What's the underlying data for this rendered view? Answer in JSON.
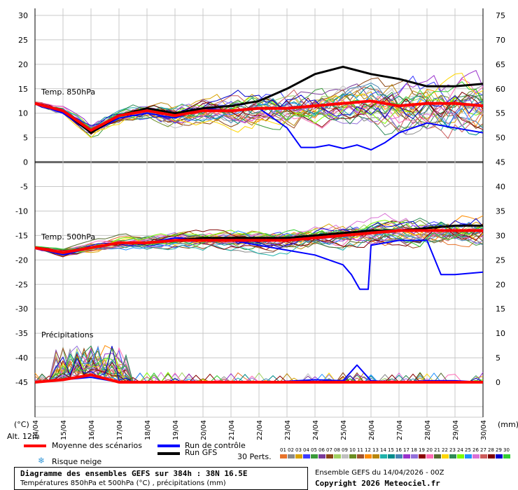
{
  "chart_data": {
    "type": "line",
    "title": "Diagramme des ensembles GEFS sur 384h : 38N 16.5E",
    "subtitle": "Températures 850hPa et 500hPa (°C) , précipitations (mm)",
    "run_info": "Ensemble GEFS du 14/04/2026 - 00Z",
    "copyright": "Copyright 2026 Meteociel.fr",
    "left_axis_unit": "(°C)",
    "right_axis_unit": "(mm)",
    "altitude": "Alt. 12m",
    "left_ticks": [
      "30",
      "25",
      "20",
      "15",
      "10",
      "5",
      "0",
      "-5",
      "-10",
      "-15",
      "-20",
      "-25",
      "-30",
      "-35",
      "-40",
      "-45"
    ],
    "right_ticks": [
      "75",
      "70",
      "65",
      "60",
      "55",
      "50",
      "45",
      "40",
      "35",
      "30",
      "25",
      "20",
      "15",
      "10",
      "5",
      "0"
    ],
    "x_dates": [
      "14/04",
      "15/04",
      "16/04",
      "17/04",
      "18/04",
      "19/04",
      "20/04",
      "21/04",
      "22/04",
      "23/04",
      "24/04",
      "25/04",
      "26/04",
      "27/04",
      "28/04",
      "29/04",
      "30/04"
    ],
    "panel_labels": {
      "t850": "Temp. 850hPa",
      "t500": "Temp. 500hPa",
      "precip": "Précipitations"
    },
    "legend": {
      "mean": "Moyenne des scénarios",
      "control": "Run de contrôle",
      "gfs": "Run GFS",
      "snow": "Risque neige",
      "perts": "30 Perts.",
      "mean_color": "#ff0000",
      "control_color": "#0000ff",
      "gfs_color": "#000000"
    },
    "pert_labels": [
      "01",
      "02",
      "03",
      "04",
      "05",
      "06",
      "07",
      "08",
      "09",
      "10",
      "11",
      "12",
      "13",
      "14",
      "15",
      "16",
      "17",
      "18",
      "19",
      "20",
      "21",
      "22",
      "23",
      "24",
      "25",
      "26",
      "27",
      "28",
      "29",
      "30"
    ],
    "pert_colors": [
      "#e8732a",
      "#8a8a8a",
      "#d9a300",
      "#3c3cff",
      "#3a9a3a",
      "#7a3a9a",
      "#8b4513",
      "#a0d060",
      "#c0c0c0",
      "#6b8e23",
      "#a0522d",
      "#ff8c00",
      "#b8860b",
      "#20b2aa",
      "#008b8b",
      "#4682b4",
      "#9932cc",
      "#9370db",
      "#8b0000",
      "#ff69b4",
      "#556b2f",
      "#ffd700",
      "#2e8b57",
      "#7cfc00",
      "#1e90ff",
      "#da70d6",
      "#cd5c5c",
      "#800000",
      "#0000cd",
      "#32cd32"
    ],
    "series": [
      {
        "name": "Moyenne des scénarios",
        "panel": "t850",
        "x": [
          0,
          1,
          2,
          3,
          4,
          5,
          6,
          7,
          8,
          9,
          10,
          11,
          12,
          13,
          14,
          15,
          16
        ],
        "values": [
          12,
          10.5,
          6.5,
          9.5,
          10.5,
          9.5,
          10.5,
          10.5,
          11,
          11,
          11.5,
          12,
          12.5,
          11.5,
          12,
          12,
          11.5
        ]
      },
      {
        "name": "Run de contrôle",
        "panel": "t850",
        "x": [
          0,
          1,
          2,
          3,
          4,
          5,
          6,
          7,
          8,
          9,
          9.5,
          10,
          10.5,
          11,
          11.5,
          12,
          12.5,
          13,
          14,
          15,
          16
        ],
        "values": [
          12,
          10,
          6,
          9,
          10,
          9,
          11,
          10.5,
          11,
          7,
          3,
          3,
          3.5,
          2.8,
          3.5,
          2.5,
          4,
          6,
          8,
          7,
          6
        ]
      },
      {
        "name": "Run GFS",
        "panel": "t850",
        "x": [
          0,
          1,
          2,
          3,
          4,
          5,
          6,
          7,
          8,
          9,
          10,
          11,
          12,
          13,
          14,
          15,
          16
        ],
        "values": [
          12,
          10.5,
          6,
          9.5,
          11,
          10,
          11,
          11.5,
          12.5,
          15,
          18,
          19.5,
          18,
          17,
          15.5,
          15.5,
          16
        ]
      },
      {
        "name": "Moyenne des scénarios",
        "panel": "t500",
        "x": [
          0,
          1,
          2,
          3,
          4,
          5,
          6,
          7,
          8,
          9,
          10,
          11,
          12,
          13,
          14,
          15,
          16
        ],
        "values": [
          -17.5,
          -18.5,
          -17.5,
          -16.5,
          -16.5,
          -16,
          -16,
          -16,
          -16,
          -16,
          -15.5,
          -15,
          -14.5,
          -14,
          -14,
          -14,
          -14
        ]
      },
      {
        "name": "Run de contrôle",
        "panel": "t500",
        "x": [
          0,
          1,
          2,
          3,
          4,
          5,
          6,
          7,
          8,
          9,
          10,
          11,
          11.3,
          11.6,
          11.9,
          12,
          13,
          14,
          14.5,
          15,
          16
        ],
        "values": [
          -17.5,
          -19,
          -17.5,
          -16.5,
          -16.5,
          -15.5,
          -16,
          -16,
          -17,
          -18,
          -19,
          -21,
          -23,
          -26,
          -26,
          -17,
          -16,
          -16,
          -23,
          -23,
          -22.5
        ]
      },
      {
        "name": "Run GFS",
        "panel": "t500",
        "x": [
          0,
          1,
          2,
          3,
          4,
          5,
          6,
          7,
          8,
          9,
          10,
          11,
          12,
          13,
          14,
          15,
          16
        ],
        "values": [
          -17.5,
          -18.5,
          -17.5,
          -16.5,
          -16.5,
          -16,
          -15.5,
          -15.5,
          -15.5,
          -15.5,
          -15,
          -14.5,
          -14,
          -14,
          -13.5,
          -13,
          -13
        ]
      },
      {
        "name": "Moyenne des scénarios",
        "panel": "precip",
        "x": [
          0,
          1,
          2,
          3,
          4,
          5,
          6,
          7,
          8,
          9,
          10,
          11,
          12,
          13,
          14,
          15,
          16
        ],
        "values": [
          0,
          0.5,
          1.5,
          0,
          0,
          0,
          0,
          0,
          0,
          0,
          0,
          0,
          0,
          0,
          0,
          0,
          0
        ]
      },
      {
        "name": "Run de contrôle",
        "panel": "precip",
        "x": [
          0,
          1,
          2,
          3,
          4,
          5,
          6,
          7,
          8,
          9,
          10,
          11,
          11.5,
          12,
          13,
          14,
          15,
          16
        ],
        "values": [
          0,
          0.5,
          1,
          0,
          0,
          0,
          0,
          0,
          0,
          0.2,
          0.5,
          0.3,
          3.5,
          0.3,
          0,
          0.3,
          0.3,
          0
        ]
      }
    ]
  }
}
